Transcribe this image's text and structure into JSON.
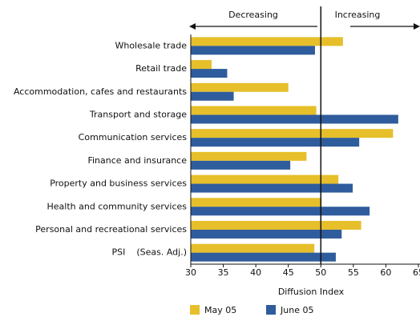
{
  "chart_data": {
    "type": "hbar",
    "categories": [
      "Wholesale trade",
      "Retail trade",
      "Accommodation, cafes and restaurants",
      "Transport and storage",
      "Communication services",
      "Finance and insurance",
      "Property and business services",
      "Health and community services",
      "Personal and recreational services",
      "PSI    (Seas. Adj.)"
    ],
    "series": [
      {
        "name": "May 05",
        "color": "#e6bf2a",
        "values": [
          53.4,
          33.2,
          45.0,
          49.3,
          61.1,
          47.8,
          52.7,
          50.1,
          56.2,
          49.0
        ]
      },
      {
        "name": "June 05",
        "color": "#2f5c9c",
        "values": [
          49.1,
          35.6,
          36.6,
          61.9,
          55.9,
          45.3,
          54.9,
          57.5,
          53.2,
          52.3
        ]
      }
    ],
    "x_label": "Diffusion Index",
    "xlim": [
      30,
      65
    ],
    "xticks": [
      30,
      35,
      40,
      45,
      50,
      55,
      60,
      65
    ],
    "reference_line": 50,
    "annotations": [
      "Decreasing",
      "Increasing"
    ]
  }
}
